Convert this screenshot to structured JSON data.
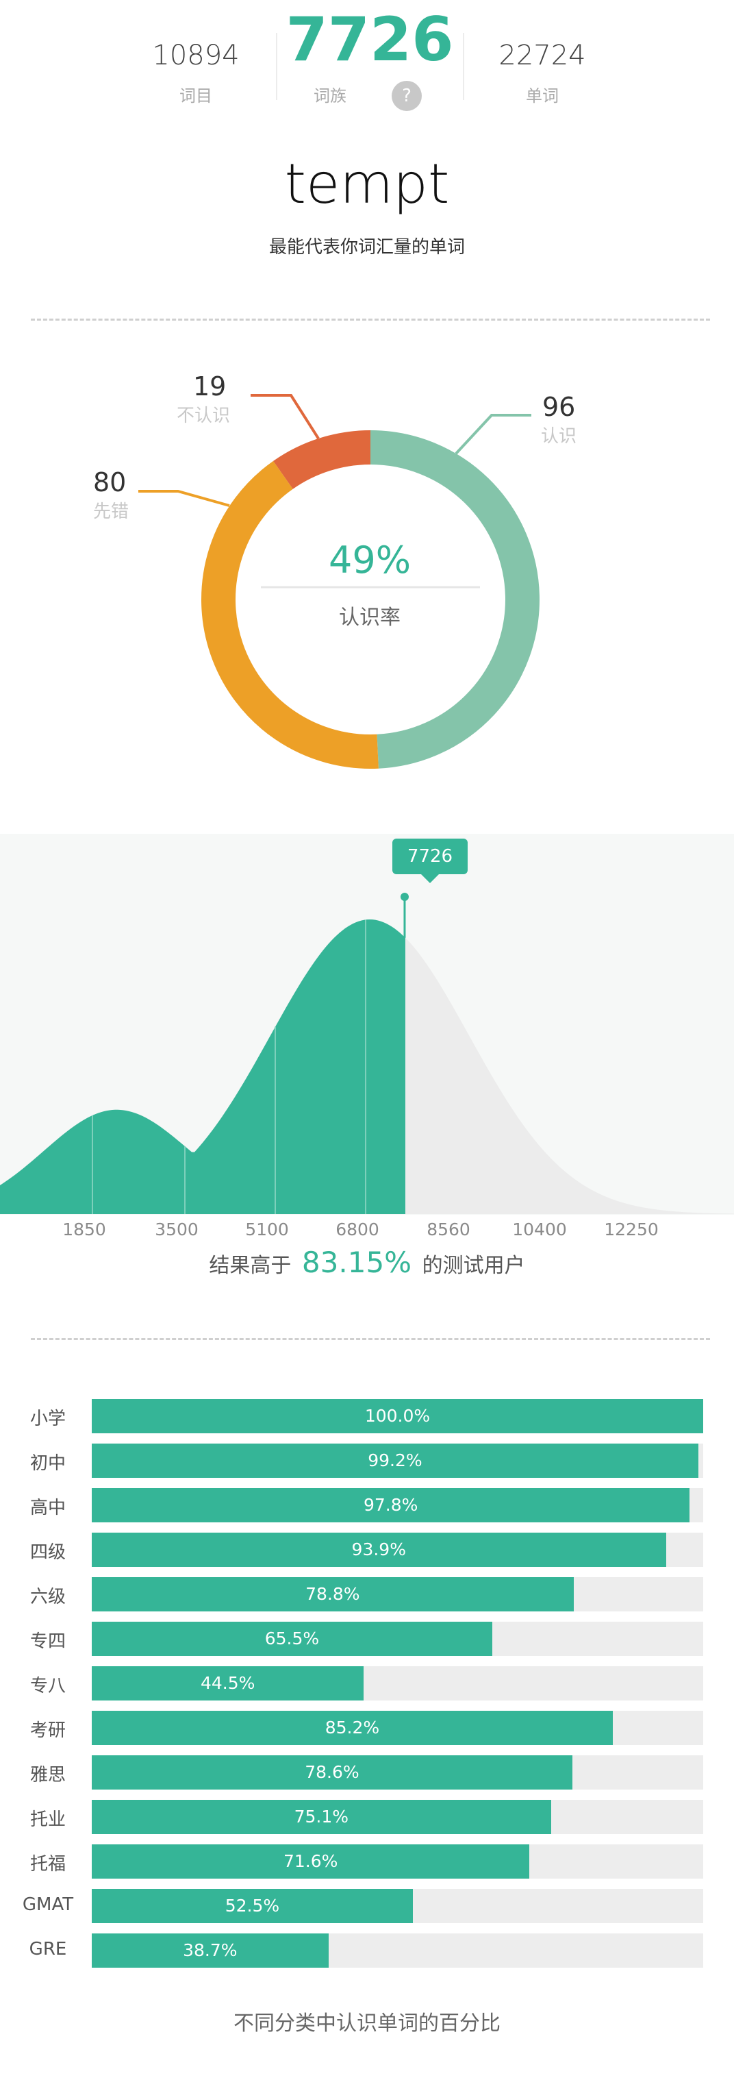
{
  "stats": {
    "entries": {
      "value": "10894",
      "label": "词目"
    },
    "families": {
      "value": "7726",
      "label": "词族"
    },
    "words": {
      "value": "22724",
      "label": "单词"
    }
  },
  "help_glyph": "?",
  "word": {
    "text": "tempt",
    "caption": "最能代表你词汇量的单词"
  },
  "donut": {
    "center_value": "49%",
    "center_label": "认识率",
    "segments": [
      {
        "name": "认识",
        "value": 96,
        "color": "#84c4aa"
      },
      {
        "name": "先错",
        "value": 80,
        "color": "#eda027"
      },
      {
        "name": "不认识",
        "value": 19,
        "color": "#e0683c"
      }
    ],
    "labels": {
      "known": {
        "value": "96",
        "label": "认识"
      },
      "wrong": {
        "value": "80",
        "label": "先错"
      },
      "unknown": {
        "value": "19",
        "label": "不认识"
      }
    }
  },
  "chart_data": [
    {
      "type": "area",
      "title": "",
      "x_ticks": [
        "1850",
        "3500",
        "5100",
        "6800",
        "8560",
        "10400",
        "12250"
      ],
      "marker": {
        "value": 7726,
        "label": "7726"
      },
      "fill_color": "#35b597",
      "rest_color": "#efefef"
    },
    {
      "type": "bar",
      "title": "不同分类中认识单词的百分比",
      "categories": [
        "小学",
        "初中",
        "高中",
        "四级",
        "六级",
        "专四",
        "专八",
        "考研",
        "雅思",
        "托业",
        "托福",
        "GMAT",
        "GRE"
      ],
      "values": [
        100.0,
        99.2,
        97.8,
        93.9,
        78.8,
        65.5,
        44.5,
        85.2,
        78.6,
        75.1,
        71.6,
        52.5,
        38.7
      ],
      "value_labels": [
        "100.0%",
        "99.2%",
        "97.8%",
        "93.9%",
        "78.8%",
        "65.5%",
        "44.5%",
        "85.2%",
        "78.6%",
        "75.1%",
        "71.6%",
        "52.5%",
        "38.7%"
      ],
      "xlim": [
        0,
        100
      ],
      "bar_color": "#35b597",
      "track_color": "#ededed"
    }
  ],
  "result": {
    "prefix": "结果高于",
    "percent": "83.15%",
    "suffix": "的测试用户"
  }
}
